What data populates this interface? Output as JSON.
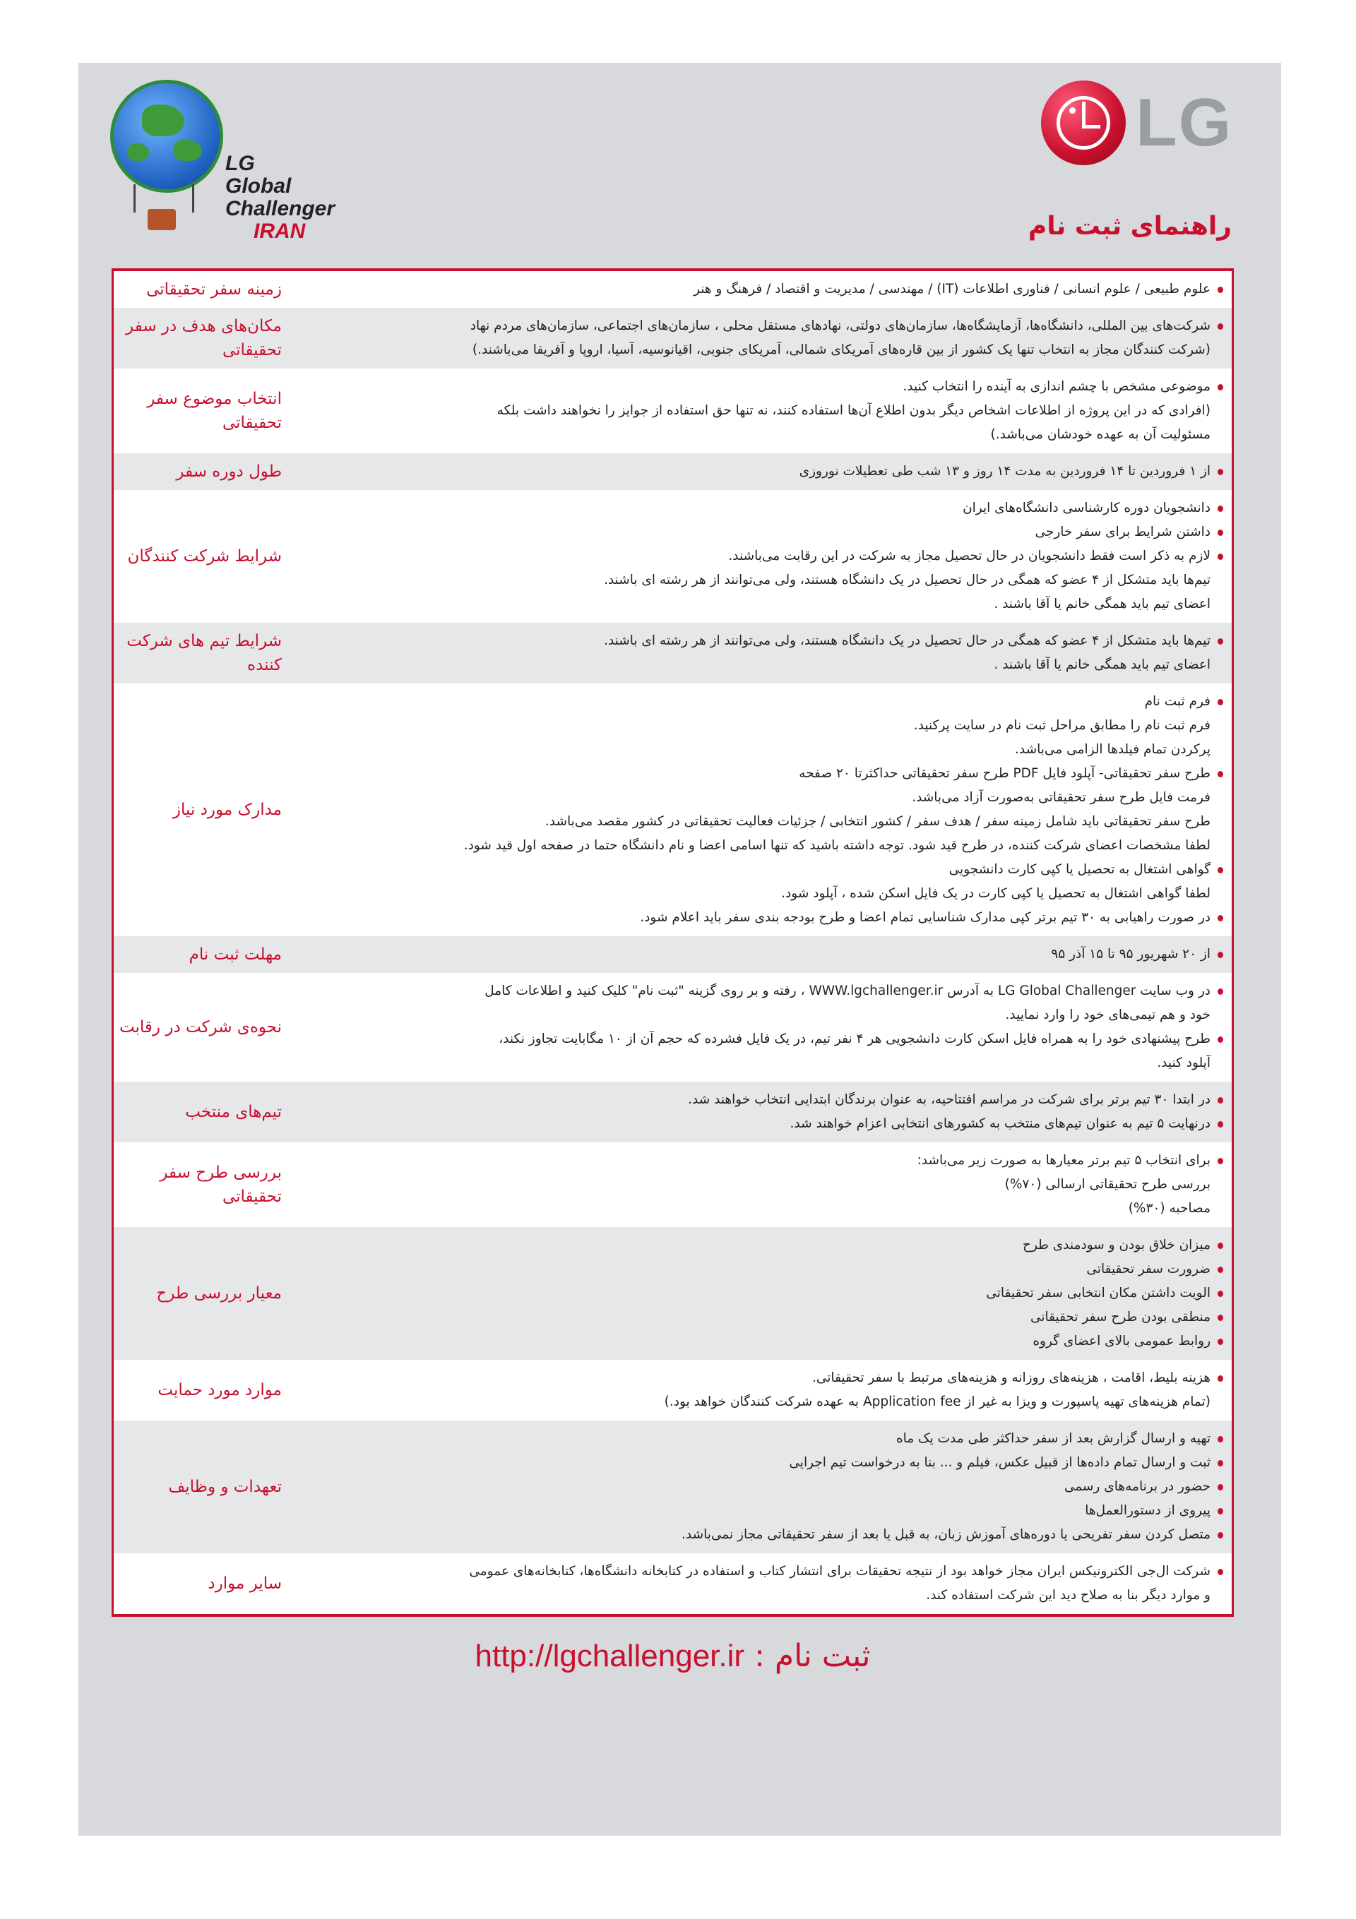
{
  "header": {
    "brand_logo_text": "LG",
    "program_logo_text": [
      "LG",
      "Global",
      "Challenger",
      "IRAN"
    ],
    "title": "راهنمای ثبت نام"
  },
  "colors": {
    "accent": "#c8102e",
    "panel": "#d7d9dd",
    "row_alt": "#e6e7e9"
  },
  "rows": [
    {
      "label": "زمینه سفر تحقیقاتی",
      "lines": [
        {
          "b": true,
          "t": "علوم طبیعی / علوم انسانی / فناوری اطلاعات (IT) / مهندسی / مدیریت و اقتصاد / فرهنگ و هنر"
        }
      ]
    },
    {
      "label": "مکان‌های هدف در سفر تحقیقاتی",
      "lines": [
        {
          "b": true,
          "t": "شرکت‌های بین المللی، دانشگاه‌ها، آزمایشگاه‌ها، سازمان‌های دولتی، نهادهای مستقل محلی ، سازمان‌های اجتماعی، سازمان‌های مردم نهاد"
        },
        {
          "b": false,
          "t": "(شرکت کنندگان مجاز به انتخاب تنها یک کشور از بین قاره‌های آمریکای شمالی، آمریکای جنوبی، اقیانوسیه، آسیا، اروپا و آفریقا می‌باشند.)"
        }
      ]
    },
    {
      "label": "انتخاب موضوع سفر تحقیقاتی",
      "lines": [
        {
          "b": true,
          "t": "موضوعی مشخص با چشم اندازی به آینده را انتخاب کنید."
        },
        {
          "b": false,
          "t": "(افرادی که در این پروژه از اطلاعات اشخاص دیگر بدون اطلاع آن‌ها استفاده کنند، نه تنها حق استفاده از جوایز را نخواهند داشت بلکه"
        },
        {
          "b": false,
          "t": "مسئولیت آن به عهده خودشان می‌باشد.)"
        }
      ]
    },
    {
      "label": "طول دوره سفر",
      "lines": [
        {
          "b": true,
          "t": "از ۱ فروردین تا ۱۴ فروردین به مدت ۱۴ روز و ۱۳ شب طی تعطیلات نوروزی"
        }
      ]
    },
    {
      "label": "شرایط شرکت کنندگان",
      "lines": [
        {
          "b": true,
          "t": "دانشجویان دوره کارشناسی دانشگاه‌های ایران"
        },
        {
          "b": true,
          "t": "داشتن شرایط برای سفر خارجی"
        },
        {
          "b": true,
          "t": "لازم به ذکر است فقط دانشجویان در حال تحصیل مجاز به شرکت در این رقابت می‌باشند."
        },
        {
          "b": false,
          "t": "تیم‌ها باید متشکل از ۴ عضو که همگی در حال تحصیل در یک دانشگاه هستند، ولی می‌توانند از هر رشته ای باشند."
        },
        {
          "b": false,
          "t": "اعضای تیم باید همگی خانم یا آقا باشند ."
        }
      ]
    },
    {
      "label": "شرایط تیم های شرکت کننده",
      "lines": [
        {
          "b": true,
          "t": "تیم‌ها باید متشکل از ۴ عضو که همگی در حال تحصیل در یک دانشگاه هستند، ولی می‌توانند از هر رشته ای باشند."
        },
        {
          "b": false,
          "t": "اعضای تیم باید همگی خانم یا آقا باشند ."
        }
      ]
    },
    {
      "label": "مدارک مورد نیاز",
      "lines": [
        {
          "b": true,
          "t": "فرم ثبت نام"
        },
        {
          "b": false,
          "t": "فرم ثبت نام را مطابق مراحل ثبت نام در سایت پرکنید."
        },
        {
          "b": false,
          "t": "پرکردن تمام فیلدها الزامی می‌باشد."
        },
        {
          "b": true,
          "t": "طرح سفر تحقیقاتی- آپلود فایل PDF طرح سفر تحقیقاتی حداکثرتا ۲۰ صفحه"
        },
        {
          "b": false,
          "t": "فرمت فایل طرح سفر تحقیقاتی به‌صورت آزاد می‌باشد."
        },
        {
          "b": false,
          "t": "طرح سفر تحقیقاتی باید شامل زمینه سفر /  هدف سفر / کشور انتخابی / جزئیات فعالیت تحقیقاتی در کشور مقصد می‌باشد."
        },
        {
          "b": false,
          "t": "لطفا مشخصات اعضای شرکت کننده، در طرح قید شود. توجه داشته باشید که تنها اسامی اعضا و نام دانشگاه حتما در صفحه اول قید شود."
        },
        {
          "b": true,
          "t": "گواهی اشتغال به تحصیل یا کپی کارت دانشجویی"
        },
        {
          "b": false,
          "t": "لطفا گواهی اشتغال به تحصیل یا کپی کارت در یک فایل اسکن شده ، آپلود شود."
        },
        {
          "b": true,
          "t": "در صورت راهیابی به ۳۰ تیم برتر کپی مدارک شناسایی تمام اعضا و طرح بودجه بندی سفر باید اعلام شود."
        }
      ]
    },
    {
      "label": "مهلت ثبت نام",
      "lines": [
        {
          "b": true,
          "t": "از ۲۰ شهریور ۹۵ تا ۱۵ آذر ۹۵"
        }
      ]
    },
    {
      "label": "نحوه‌ی شرکت در رقابت",
      "lines": [
        {
          "b": true,
          "t": "در وب سایت LG Global Challenger  به آدرس WWW.lgchallenger.ir ، رفته و بر روی گزینه \"ثبت نام\" کلیک کنید و اطلاعات کامل"
        },
        {
          "b": false,
          "t": "خود و هم تیمی‌های خود را وارد نمایید."
        },
        {
          "b": true,
          "t": "طرح پیشنهادی خود را به همراه فایل اسکن کارت دانشجویی هر ۴ نفر تیم، در یک فایل فشرده که حجم آن از ۱۰ مگابایت تجاوز نکند،"
        },
        {
          "b": false,
          "t": "آپلود کنید."
        }
      ]
    },
    {
      "label": "تیم‌های منتخب",
      "lines": [
        {
          "b": true,
          "t": "در ابتدا ۳۰ تیم برتر برای شرکت در مراسم افتتاحیه، به عنوان برندگان ابتدایی انتخاب خواهند شد."
        },
        {
          "b": true,
          "t": "درنهایت ۵ تیم به عنوان تیم‌های منتخب به کشورهای انتخابی اعزام خواهند شد."
        }
      ]
    },
    {
      "label": "بررسی طرح سفر تحقیقاتی",
      "lines": [
        {
          "b": true,
          "t": "برای انتخاب ۵ تیم برتر معیارها به صورت زیر می‌باشد:"
        },
        {
          "b": false,
          "t": "بررسی طرح تحقیقاتی ارسالی (۷۰%)"
        },
        {
          "b": false,
          "t": "مصاحبه (۳۰%)"
        }
      ]
    },
    {
      "label": "معیار بررسی طرح",
      "lines": [
        {
          "b": true,
          "t": "میزان خلاق بودن و سودمندی طرح"
        },
        {
          "b": true,
          "t": "ضرورت سفر تحقیقاتی"
        },
        {
          "b": true,
          "t": "الویت داشتن مکان انتخابی سفر تحقیقاتی"
        },
        {
          "b": true,
          "t": "منطقی بودن طرح سفر تحقیقاتی"
        },
        {
          "b": true,
          "t": "روابط عمومی بالای اعضای گروه"
        }
      ]
    },
    {
      "label": "موارد مورد حمایت",
      "lines": [
        {
          "b": true,
          "t": "هزینه بلیط، اقامت ، هزینه‌های روزانه و هزینه‌های مرتبط با سفر تحقیقاتی."
        },
        {
          "b": false,
          "t": "(تمام هزینه‌های تهیه پاسپورت و ویزا به غیر از Application fee  به عهده شرکت کنندگان خواهد بود.)"
        }
      ]
    },
    {
      "label": "تعهدات و وظایف",
      "lines": [
        {
          "b": true,
          "t": "تهیه و ارسال گزارش بعد از سفر حداکثر طی مدت یک ماه"
        },
        {
          "b": true,
          "t": "ثبت و ارسال تمام داده‌ها از قبیل عکس، فیلم و ... بنا به درخواست تیم اجرایی"
        },
        {
          "b": true,
          "t": "حضور در برنامه‌های رسمی"
        },
        {
          "b": true,
          "t": "پیروی از دستورالعمل‌ها"
        },
        {
          "b": true,
          "t": "متصل کردن سفر تفریحی یا دوره‌های آموزش زبان، به قبل یا بعد از سفر تحقیقاتی مجاز نمی‌باشد."
        }
      ]
    },
    {
      "label": "سایر موارد",
      "lines": [
        {
          "b": true,
          "t": "شرکت ال‌جی الکترونیکس ایران مجاز خواهد بود از نتیجه تحقیقات برای انتشار کتاب و استفاده در کتابخانه دانشگاه‌ها، کتابخانه‌های عمومی"
        },
        {
          "b": false,
          "t": "و موارد دیگر بنا به صلاح دید این شرکت استفاده کند."
        }
      ]
    }
  ],
  "footer": {
    "label": "ثبت نام :",
    "url": "http://lgchallenger.ir"
  }
}
